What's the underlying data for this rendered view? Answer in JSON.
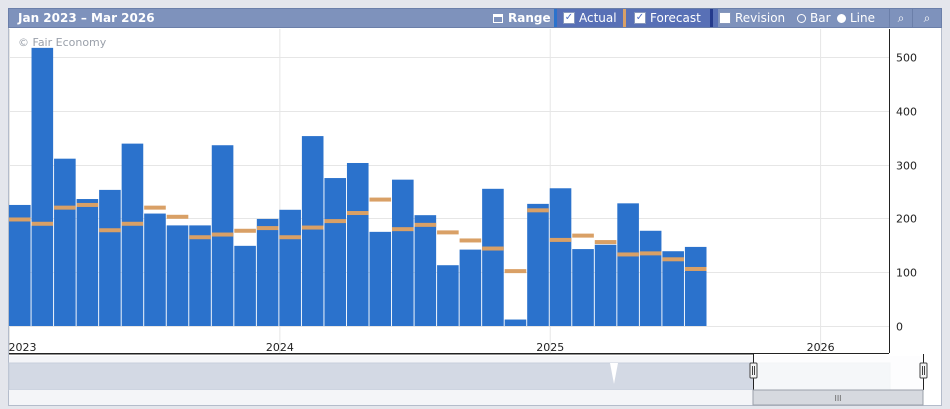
{
  "toolbar": {
    "period": "Jan 2023 – Mar 2026",
    "range_label": "Range",
    "actual_label": "Actual",
    "forecast_label": "Forecast",
    "revision_label": "Revision",
    "bar_label": "Bar",
    "line_label": "Line",
    "actual_checked": true,
    "forecast_checked": true,
    "revision_checked": false,
    "mode": "bar"
  },
  "watermark": "© Fair Economy",
  "colors": {
    "actual": "#2b72cc",
    "forecast": "#d9a066",
    "toolbar": "#7e92bc",
    "navigator": "#d3d9e4"
  },
  "chart_data": {
    "type": "bar",
    "x_ticks": [
      "2023",
      "2024",
      "2025",
      "2026"
    ],
    "y_ticks": [
      0,
      100,
      200,
      300,
      400,
      500
    ],
    "ylim": [
      0,
      550
    ],
    "grid": true,
    "y_axis_position": "right",
    "categories": [
      "2023-01",
      "2023-02",
      "2023-03",
      "2023-04",
      "2023-05",
      "2023-06",
      "2023-07",
      "2023-08",
      "2023-09",
      "2023-10",
      "2023-11",
      "2023-12",
      "2024-01",
      "2024-02",
      "2024-03",
      "2024-04",
      "2024-05",
      "2024-06",
      "2024-07",
      "2024-08",
      "2024-09",
      "2024-10",
      "2024-11",
      "2024-12",
      "2025-01",
      "2025-02",
      "2025-03",
      "2025-04",
      "2025-05",
      "2025-06",
      "2025-07"
    ],
    "series": [
      {
        "name": "Actual",
        "type": "bar",
        "values": [
          225,
          517,
          311,
          236,
          253,
          339,
          209,
          187,
          187,
          336,
          149,
          199,
          216,
          353,
          275,
          303,
          175,
          272,
          206,
          113,
          142,
          255,
          12,
          227,
          256,
          143,
          151,
          228,
          177,
          139,
          147
        ]
      },
      {
        "name": "Forecast",
        "type": "marker",
        "values": [
          198,
          190,
          220,
          225,
          178,
          190,
          220,
          203,
          165,
          170,
          177,
          182,
          165,
          183,
          195,
          210,
          235,
          180,
          188,
          174,
          159,
          144,
          102,
          215,
          160,
          168,
          156,
          133,
          135,
          124,
          106
        ]
      }
    ]
  },
  "navigator": {
    "handle_left": "‖",
    "handle_right": "‖",
    "scroll_grip": "III"
  }
}
